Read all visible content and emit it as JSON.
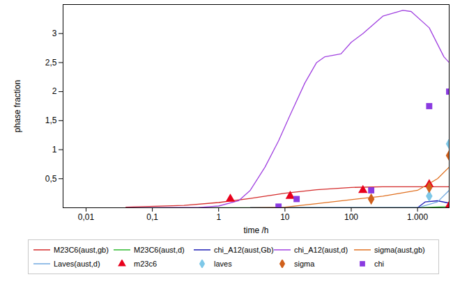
{
  "chart_data": {
    "type": "line",
    "x_label": "time /h",
    "y_label": "phase fraction",
    "log": "x",
    "legend": "bottom",
    "grid": false,
    "xlim": [
      0.0045,
      3000
    ],
    "xticks": [
      {
        "value": 0.01,
        "label": "0,01"
      },
      {
        "value": 0.1,
        "label": "0,1"
      },
      1,
      10,
      100,
      {
        "value": 1000,
        "label": "1.000"
      }
    ],
    "ylim": [
      0,
      3.5
    ],
    "yticks": [
      {
        "value": 0.5,
        "label": "0,5"
      },
      1,
      {
        "value": 1.5,
        "label": "1,5"
      },
      2,
      {
        "value": 2.5,
        "label": "2,5"
      },
      3
    ],
    "series": [
      {
        "name": "M23C6(aust,gb)",
        "type": "line",
        "color": "#d42a2a",
        "x": [
          0.04,
          0.3,
          1,
          3,
          10,
          30,
          100,
          300,
          3000
        ],
        "values": [
          0.01,
          0.04,
          0.09,
          0.16,
          0.25,
          0.31,
          0.35,
          0.36,
          0.36
        ]
      },
      {
        "name": "M23C6(aust,d)",
        "type": "line",
        "color": "#2eb82e",
        "x": [
          0.5,
          1000,
          3000
        ],
        "values": [
          0,
          0,
          0.02
        ]
      },
      {
        "name": "chi_A12(aust,Gb)",
        "type": "line",
        "color": "#1c1cb4",
        "x": [
          3,
          1000,
          1300,
          2000,
          3000
        ],
        "values": [
          0,
          0,
          0.1,
          0.12,
          0.08
        ]
      },
      {
        "name": "chi_A12(aust,d)",
        "type": "line",
        "color": "#a040e0",
        "x": [
          0.04,
          0.5,
          1,
          2,
          3,
          5,
          8,
          12,
          20,
          30,
          40,
          70,
          100,
          150,
          300,
          600,
          800,
          1500,
          2500,
          3000
        ],
        "values": [
          0,
          0.005,
          0.03,
          0.12,
          0.3,
          0.7,
          1.15,
          1.6,
          2.15,
          2.5,
          2.6,
          2.65,
          2.85,
          3.0,
          3.3,
          3.4,
          3.38,
          3.1,
          2.6,
          2.5
        ]
      },
      {
        "name": "sigma(aust,gb)",
        "type": "line",
        "color": "#e07020",
        "x": [
          3,
          10,
          30,
          100,
          300,
          1000,
          2000,
          3000
        ],
        "values": [
          0,
          0.01,
          0.07,
          0.14,
          0.2,
          0.3,
          0.5,
          0.7
        ]
      },
      {
        "name": "Laves(aust,d)",
        "type": "line",
        "color": "#70a8e0",
        "x": [
          3,
          1000,
          2000,
          3000
        ],
        "values": [
          0,
          0,
          0.1,
          0.3
        ]
      },
      {
        "name": "m23c6",
        "type": "scatter",
        "marker": "triangle",
        "color": "#e8001c",
        "x": [
          1.5,
          12,
          150,
          1500,
          3000
        ],
        "values": [
          0.15,
          0.2,
          0.3,
          0.4,
          0.03
        ]
      },
      {
        "name": "laves",
        "type": "scatter",
        "marker": "diamond",
        "color": "#7ec8e8",
        "x": [
          1500,
          3000
        ],
        "values": [
          0.2,
          1.1
        ]
      },
      {
        "name": "sigma",
        "type": "scatter",
        "marker": "diamond",
        "color": "#d0601c",
        "x": [
          200,
          1500,
          3000
        ],
        "values": [
          0.15,
          0.35,
          0.9
        ]
      },
      {
        "name": "chi",
        "type": "scatter",
        "marker": "square",
        "color": "#8a3ae0",
        "x": [
          8,
          15,
          200,
          1500,
          3000
        ],
        "values": [
          0.02,
          0.15,
          0.3,
          1.75,
          2.0
        ]
      }
    ]
  }
}
